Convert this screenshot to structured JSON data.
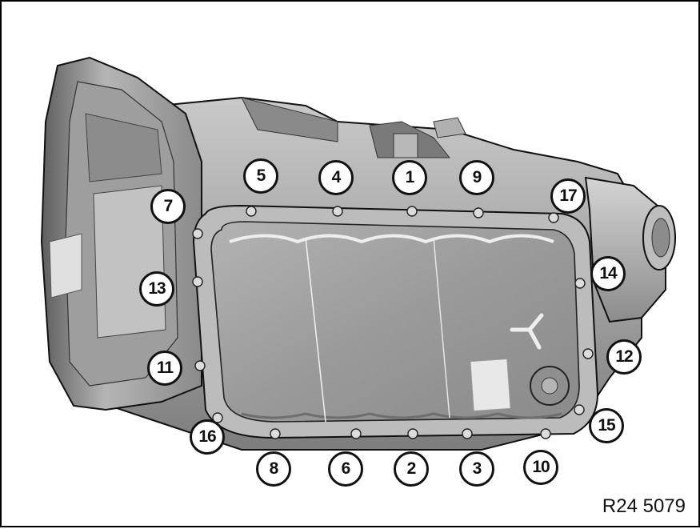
{
  "callouts": [
    {
      "label": "1"
    },
    {
      "label": "2"
    },
    {
      "label": "3"
    },
    {
      "label": "4"
    },
    {
      "label": "5"
    },
    {
      "label": "6"
    },
    {
      "label": "7"
    },
    {
      "label": "8"
    },
    {
      "label": "9"
    },
    {
      "label": "10"
    },
    {
      "label": "11"
    },
    {
      "label": "12"
    },
    {
      "label": "13"
    },
    {
      "label": "14"
    },
    {
      "label": "15"
    },
    {
      "label": "16"
    },
    {
      "label": "17"
    }
  ],
  "reference_code": "R24 5079",
  "colors": {
    "housing_dark": "#6f6f6f",
    "housing_mid": "#a9a9a9",
    "housing_light": "#d6d6d6",
    "pan": "#9c9c9c",
    "outline": "#111111"
  }
}
